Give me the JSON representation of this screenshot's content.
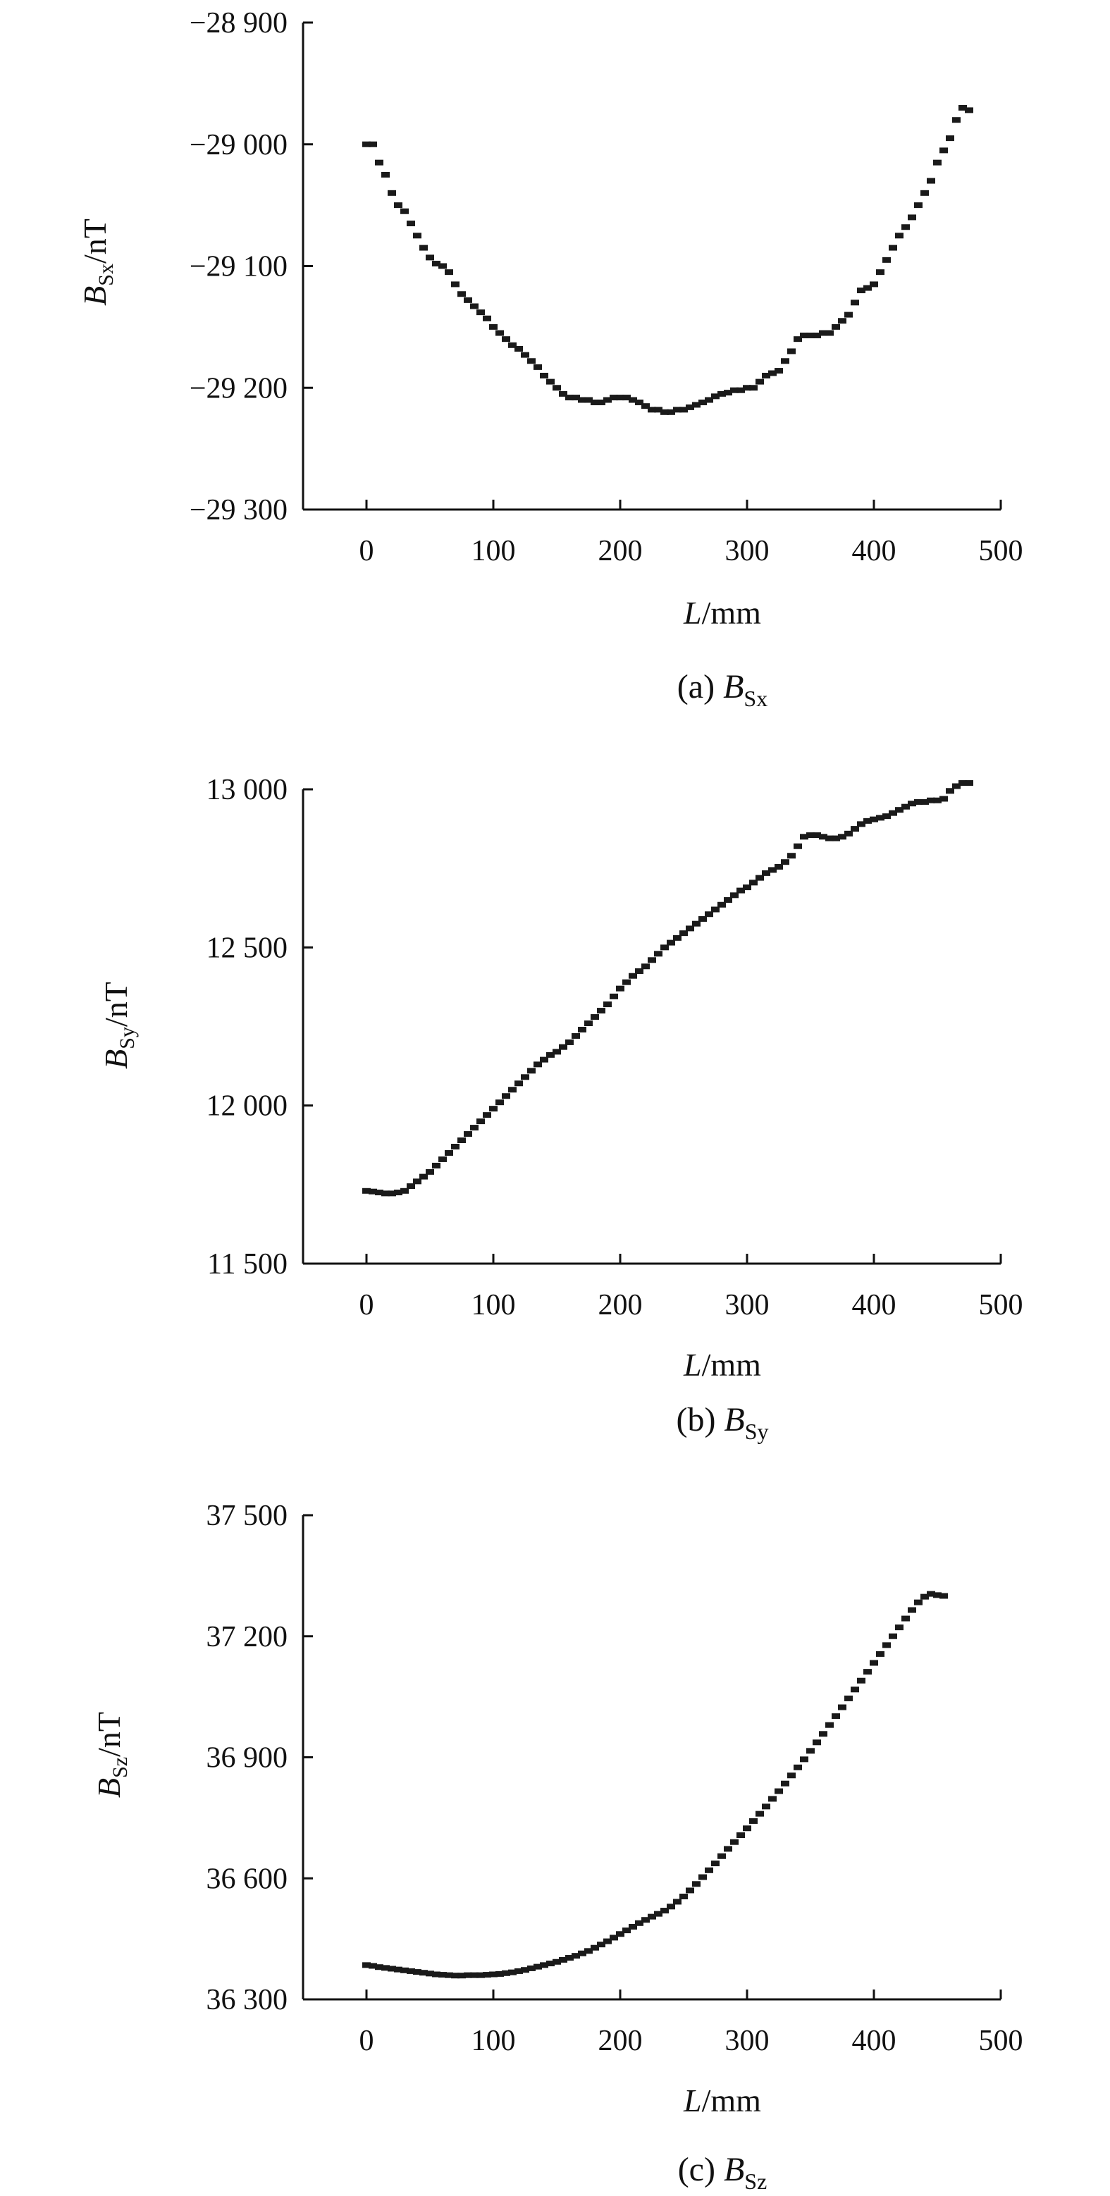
{
  "chart_data": [
    {
      "type": "scatter",
      "caption": {
        "prefix": "(a) ",
        "sym": "B",
        "sub": "Sx"
      },
      "ylabel": {
        "sym": "B",
        "sub": "Sx",
        "unit": "/nT"
      },
      "xlabel": {
        "sym": "L",
        "unit": "/mm"
      },
      "xlim": [
        -50,
        500
      ],
      "ylim": [
        -29300,
        -28900
      ],
      "xticks": [
        0,
        100,
        200,
        300,
        400,
        500
      ],
      "yticks": [
        -29300,
        -29200,
        -29100,
        -29000,
        -28900
      ],
      "xtick_labels": [
        "0",
        "100",
        "200",
        "300",
        "400",
        "500"
      ],
      "ytick_labels": [
        "−29 300",
        "−29 200",
        "−29 100",
        "−29 000",
        "−28 900"
      ],
      "points": [
        [
          0,
          -29000
        ],
        [
          5,
          -29000
        ],
        [
          10,
          -29015
        ],
        [
          15,
          -29025
        ],
        [
          20,
          -29040
        ],
        [
          25,
          -29050
        ],
        [
          30,
          -29055
        ],
        [
          35,
          -29065
        ],
        [
          40,
          -29075
        ],
        [
          45,
          -29085
        ],
        [
          50,
          -29093
        ],
        [
          55,
          -29098
        ],
        [
          60,
          -29100
        ],
        [
          65,
          -29105
        ],
        [
          70,
          -29115
        ],
        [
          75,
          -29123
        ],
        [
          80,
          -29128
        ],
        [
          85,
          -29133
        ],
        [
          90,
          -29138
        ],
        [
          95,
          -29143
        ],
        [
          100,
          -29150
        ],
        [
          105,
          -29155
        ],
        [
          110,
          -29160
        ],
        [
          115,
          -29165
        ],
        [
          120,
          -29168
        ],
        [
          125,
          -29173
        ],
        [
          130,
          -29178
        ],
        [
          135,
          -29183
        ],
        [
          140,
          -29190
        ],
        [
          145,
          -29195
        ],
        [
          150,
          -29200
        ],
        [
          155,
          -29205
        ],
        [
          160,
          -29208
        ],
        [
          165,
          -29208
        ],
        [
          170,
          -29210
        ],
        [
          175,
          -29210
        ],
        [
          180,
          -29212
        ],
        [
          185,
          -29212
        ],
        [
          190,
          -29210
        ],
        [
          195,
          -29208
        ],
        [
          200,
          -29208
        ],
        [
          205,
          -29208
        ],
        [
          210,
          -29210
        ],
        [
          215,
          -29212
        ],
        [
          220,
          -29215
        ],
        [
          225,
          -29218
        ],
        [
          230,
          -29218
        ],
        [
          235,
          -29220
        ],
        [
          240,
          -29220
        ],
        [
          245,
          -29218
        ],
        [
          250,
          -29218
        ],
        [
          255,
          -29216
        ],
        [
          260,
          -29214
        ],
        [
          265,
          -29212
        ],
        [
          270,
          -29210
        ],
        [
          275,
          -29207
        ],
        [
          280,
          -29205
        ],
        [
          285,
          -29204
        ],
        [
          290,
          -29202
        ],
        [
          295,
          -29202
        ],
        [
          300,
          -29200
        ],
        [
          305,
          -29200
        ],
        [
          310,
          -29195
        ],
        [
          315,
          -29190
        ],
        [
          320,
          -29188
        ],
        [
          325,
          -29186
        ],
        [
          330,
          -29178
        ],
        [
          335,
          -29170
        ],
        [
          340,
          -29160
        ],
        [
          345,
          -29157
        ],
        [
          350,
          -29157
        ],
        [
          355,
          -29157
        ],
        [
          360,
          -29155
        ],
        [
          365,
          -29155
        ],
        [
          370,
          -29150
        ],
        [
          375,
          -29145
        ],
        [
          380,
          -29140
        ],
        [
          385,
          -29130
        ],
        [
          390,
          -29120
        ],
        [
          395,
          -29118
        ],
        [
          400,
          -29115
        ],
        [
          405,
          -29105
        ],
        [
          410,
          -29095
        ],
        [
          415,
          -29085
        ],
        [
          420,
          -29075
        ],
        [
          425,
          -29068
        ],
        [
          430,
          -29060
        ],
        [
          435,
          -29050
        ],
        [
          440,
          -29040
        ],
        [
          445,
          -29030
        ],
        [
          450,
          -29015
        ],
        [
          455,
          -29005
        ],
        [
          460,
          -28995
        ],
        [
          465,
          -28980
        ],
        [
          470,
          -28970
        ],
        [
          475,
          -28972
        ]
      ]
    },
    {
      "type": "scatter",
      "caption": {
        "prefix": "(b) ",
        "sym": "B",
        "sub": "Sy"
      },
      "ylabel": {
        "sym": "B",
        "sub": "Sy",
        "unit": "/nT"
      },
      "xlabel": {
        "sym": "L",
        "unit": "/mm"
      },
      "xlim": [
        -50,
        500
      ],
      "ylim": [
        11500,
        13000
      ],
      "xticks": [
        0,
        100,
        200,
        300,
        400,
        500
      ],
      "yticks": [
        11500,
        12000,
        12500,
        13000
      ],
      "xtick_labels": [
        "0",
        "100",
        "200",
        "300",
        "400",
        "500"
      ],
      "ytick_labels": [
        "11 500",
        "12 000",
        "12 500",
        "13 000"
      ],
      "points": [
        [
          0,
          11730
        ],
        [
          5,
          11728
        ],
        [
          10,
          11725
        ],
        [
          15,
          11722
        ],
        [
          20,
          11722
        ],
        [
          25,
          11725
        ],
        [
          30,
          11730
        ],
        [
          35,
          11745
        ],
        [
          40,
          11760
        ],
        [
          45,
          11775
        ],
        [
          50,
          11790
        ],
        [
          55,
          11810
        ],
        [
          60,
          11830
        ],
        [
          65,
          11850
        ],
        [
          70,
          11870
        ],
        [
          75,
          11890
        ],
        [
          80,
          11910
        ],
        [
          85,
          11930
        ],
        [
          90,
          11950
        ],
        [
          95,
          11970
        ],
        [
          100,
          11990
        ],
        [
          105,
          12010
        ],
        [
          110,
          12030
        ],
        [
          115,
          12050
        ],
        [
          120,
          12070
        ],
        [
          125,
          12090
        ],
        [
          130,
          12110
        ],
        [
          135,
          12130
        ],
        [
          140,
          12145
        ],
        [
          145,
          12160
        ],
        [
          150,
          12170
        ],
        [
          155,
          12185
        ],
        [
          160,
          12200
        ],
        [
          165,
          12220
        ],
        [
          170,
          12240
        ],
        [
          175,
          12260
        ],
        [
          180,
          12280
        ],
        [
          185,
          12300
        ],
        [
          190,
          12320
        ],
        [
          195,
          12345
        ],
        [
          200,
          12370
        ],
        [
          205,
          12390
        ],
        [
          210,
          12410
        ],
        [
          215,
          12425
        ],
        [
          220,
          12440
        ],
        [
          225,
          12460
        ],
        [
          230,
          12480
        ],
        [
          235,
          12500
        ],
        [
          240,
          12515
        ],
        [
          245,
          12530
        ],
        [
          250,
          12545
        ],
        [
          255,
          12560
        ],
        [
          260,
          12575
        ],
        [
          265,
          12590
        ],
        [
          270,
          12605
        ],
        [
          275,
          12620
        ],
        [
          280,
          12635
        ],
        [
          285,
          12650
        ],
        [
          290,
          12665
        ],
        [
          295,
          12680
        ],
        [
          300,
          12690
        ],
        [
          305,
          12705
        ],
        [
          310,
          12720
        ],
        [
          315,
          12735
        ],
        [
          320,
          12745
        ],
        [
          325,
          12755
        ],
        [
          330,
          12770
        ],
        [
          335,
          12790
        ],
        [
          340,
          12820
        ],
        [
          345,
          12850
        ],
        [
          350,
          12855
        ],
        [
          355,
          12855
        ],
        [
          360,
          12850
        ],
        [
          365,
          12845
        ],
        [
          370,
          12845
        ],
        [
          375,
          12850
        ],
        [
          380,
          12860
        ],
        [
          385,
          12875
        ],
        [
          390,
          12890
        ],
        [
          395,
          12900
        ],
        [
          400,
          12905
        ],
        [
          405,
          12910
        ],
        [
          410,
          12915
        ],
        [
          415,
          12925
        ],
        [
          420,
          12935
        ],
        [
          425,
          12945
        ],
        [
          430,
          12955
        ],
        [
          435,
          12960
        ],
        [
          440,
          12960
        ],
        [
          445,
          12965
        ],
        [
          450,
          12965
        ],
        [
          455,
          12970
        ],
        [
          460,
          12995
        ],
        [
          465,
          13010
        ],
        [
          470,
          13020
        ],
        [
          475,
          13020
        ]
      ]
    },
    {
      "type": "scatter",
      "caption": {
        "prefix": "(c) ",
        "sym": "B",
        "sub": "Sz"
      },
      "ylabel": {
        "sym": "B",
        "sub": "Sz",
        "unit": "/nT"
      },
      "xlabel": {
        "sym": "L",
        "unit": "/mm"
      },
      "xlim": [
        -50,
        500
      ],
      "ylim": [
        36300,
        37500
      ],
      "xticks": [
        0,
        100,
        200,
        300,
        400,
        500
      ],
      "yticks": [
        36300,
        36600,
        36900,
        37200,
        37500
      ],
      "xtick_labels": [
        "0",
        "100",
        "200",
        "300",
        "400",
        "500"
      ],
      "ytick_labels": [
        "36 300",
        "36 600",
        "36 900",
        "37 200",
        "37 500"
      ],
      "points": [
        [
          0,
          36385
        ],
        [
          5,
          36383
        ],
        [
          10,
          36380
        ],
        [
          15,
          36378
        ],
        [
          20,
          36376
        ],
        [
          25,
          36374
        ],
        [
          30,
          36372
        ],
        [
          35,
          36370
        ],
        [
          40,
          36368
        ],
        [
          45,
          36366
        ],
        [
          50,
          36364
        ],
        [
          55,
          36362
        ],
        [
          60,
          36361
        ],
        [
          65,
          36360
        ],
        [
          70,
          36359
        ],
        [
          75,
          36359
        ],
        [
          80,
          36360
        ],
        [
          85,
          36360
        ],
        [
          90,
          36360
        ],
        [
          95,
          36361
        ],
        [
          100,
          36362
        ],
        [
          105,
          36363
        ],
        [
          110,
          36365
        ],
        [
          115,
          36367
        ],
        [
          120,
          36370
        ],
        [
          125,
          36373
        ],
        [
          130,
          36377
        ],
        [
          135,
          36381
        ],
        [
          140,
          36385
        ],
        [
          145,
          36389
        ],
        [
          150,
          36393
        ],
        [
          155,
          36398
        ],
        [
          160,
          36403
        ],
        [
          165,
          36408
        ],
        [
          170,
          36414
        ],
        [
          175,
          36420
        ],
        [
          180,
          36428
        ],
        [
          185,
          36436
        ],
        [
          190,
          36444
        ],
        [
          195,
          36453
        ],
        [
          200,
          36462
        ],
        [
          205,
          36471
        ],
        [
          210,
          36480
        ],
        [
          215,
          36489
        ],
        [
          220,
          36497
        ],
        [
          225,
          36505
        ],
        [
          230,
          36512
        ],
        [
          235,
          36520
        ],
        [
          240,
          36530
        ],
        [
          245,
          36542
        ],
        [
          250,
          36555
        ],
        [
          255,
          36570
        ],
        [
          260,
          36586
        ],
        [
          265,
          36603
        ],
        [
          270,
          36620
        ],
        [
          275,
          36637
        ],
        [
          280,
          36655
        ],
        [
          285,
          36673
        ],
        [
          290,
          36690
        ],
        [
          295,
          36707
        ],
        [
          300,
          36724
        ],
        [
          305,
          36742
        ],
        [
          310,
          36760
        ],
        [
          315,
          36778
        ],
        [
          320,
          36797
        ],
        [
          325,
          36816
        ],
        [
          330,
          36835
        ],
        [
          335,
          36855
        ],
        [
          340,
          36875
        ],
        [
          345,
          36895
        ],
        [
          350,
          36916
        ],
        [
          355,
          36937
        ],
        [
          360,
          36958
        ],
        [
          365,
          36980
        ],
        [
          370,
          37002
        ],
        [
          375,
          37024
        ],
        [
          380,
          37046
        ],
        [
          385,
          37068
        ],
        [
          390,
          37090
        ],
        [
          395,
          37112
        ],
        [
          400,
          37134
        ],
        [
          405,
          37156
        ],
        [
          410,
          37178
        ],
        [
          415,
          37200
        ],
        [
          420,
          37222
        ],
        [
          425,
          37244
        ],
        [
          430,
          37265
        ],
        [
          435,
          37284
        ],
        [
          440,
          37298
        ],
        [
          445,
          37305
        ],
        [
          450,
          37302
        ],
        [
          455,
          37300
        ]
      ]
    }
  ]
}
